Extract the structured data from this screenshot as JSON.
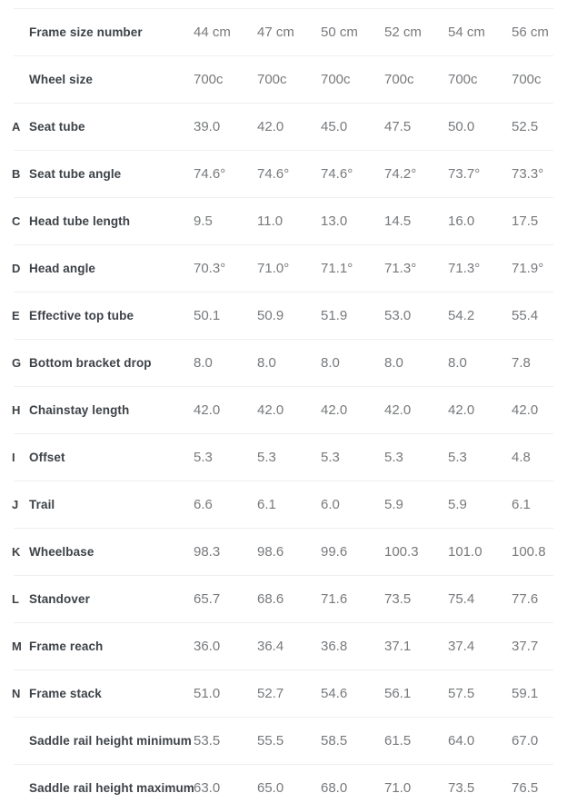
{
  "table": {
    "name": "frame-geometry-table",
    "size_columns": [
      "44 cm",
      "47 cm",
      "50 cm",
      "52 cm",
      "54 cm",
      "56 cm"
    ],
    "rows": [
      {
        "letter": "",
        "label": "Frame size number",
        "values": [
          "44 cm",
          "47 cm",
          "50 cm",
          "52 cm",
          "54 cm",
          "56 cm"
        ]
      },
      {
        "letter": "",
        "label": "Wheel size",
        "values": [
          "700c",
          "700c",
          "700c",
          "700c",
          "700c",
          "700c"
        ]
      },
      {
        "letter": "A",
        "label": "Seat tube",
        "values": [
          "39.0",
          "42.0",
          "45.0",
          "47.5",
          "50.0",
          "52.5"
        ]
      },
      {
        "letter": "B",
        "label": "Seat tube angle",
        "values": [
          "74.6°",
          "74.6°",
          "74.6°",
          "74.2°",
          "73.7°",
          "73.3°"
        ]
      },
      {
        "letter": "C",
        "label": "Head tube length",
        "values": [
          "9.5",
          "11.0",
          "13.0",
          "14.5",
          "16.0",
          "17.5"
        ]
      },
      {
        "letter": "D",
        "label": "Head angle",
        "values": [
          "70.3°",
          "71.0°",
          "71.1°",
          "71.3°",
          "71.3°",
          "71.9°"
        ]
      },
      {
        "letter": "E",
        "label": "Effective top tube",
        "values": [
          "50.1",
          "50.9",
          "51.9",
          "53.0",
          "54.2",
          "55.4"
        ]
      },
      {
        "letter": "G",
        "label": "Bottom bracket drop",
        "values": [
          "8.0",
          "8.0",
          "8.0",
          "8.0",
          "8.0",
          "7.8"
        ]
      },
      {
        "letter": "H",
        "label": "Chainstay length",
        "values": [
          "42.0",
          "42.0",
          "42.0",
          "42.0",
          "42.0",
          "42.0"
        ]
      },
      {
        "letter": "I",
        "label": "Offset",
        "values": [
          "5.3",
          "5.3",
          "5.3",
          "5.3",
          "5.3",
          "4.8"
        ]
      },
      {
        "letter": "J",
        "label": "Trail",
        "values": [
          "6.6",
          "6.1",
          "6.0",
          "5.9",
          "5.9",
          "6.1"
        ]
      },
      {
        "letter": "K",
        "label": "Wheelbase",
        "values": [
          "98.3",
          "98.6",
          "99.6",
          "100.3",
          "101.0",
          "100.8"
        ]
      },
      {
        "letter": "L",
        "label": "Standover",
        "values": [
          "65.7",
          "68.6",
          "71.6",
          "73.5",
          "75.4",
          "77.6"
        ]
      },
      {
        "letter": "M",
        "label": "Frame reach",
        "values": [
          "36.0",
          "36.4",
          "36.8",
          "37.1",
          "37.4",
          "37.7"
        ]
      },
      {
        "letter": "N",
        "label": "Frame stack",
        "values": [
          "51.0",
          "52.7",
          "54.6",
          "56.1",
          "57.5",
          "59.1"
        ]
      },
      {
        "letter": "",
        "label": "Saddle rail height minimum",
        "values": [
          "53.5",
          "55.5",
          "58.5",
          "61.5",
          "64.0",
          "67.0"
        ]
      },
      {
        "letter": "",
        "label": "Saddle rail height maximum",
        "values": [
          "63.0",
          "65.0",
          "68.0",
          "71.0",
          "73.5",
          "76.5"
        ]
      }
    ]
  },
  "colors": {
    "label_text": "#3d4247",
    "value_text": "#77797c",
    "divider": "#efefef",
    "background": "#ffffff"
  }
}
